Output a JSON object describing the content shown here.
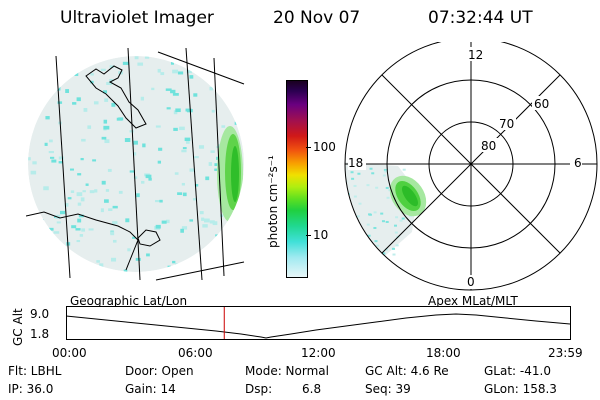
{
  "header": {
    "title": "Ultraviolet Imager",
    "date": "20 Nov 07",
    "time": "07:32:44 UT"
  },
  "colorbar": {
    "label": "photon cm⁻²s⁻¹",
    "ticks": [
      "100",
      "10"
    ]
  },
  "polar": {
    "lat_labels": [
      "80",
      "70",
      "60"
    ],
    "mlt_labels": [
      "12",
      "18",
      "6",
      "0"
    ]
  },
  "panel_labels": {
    "left": "Geographic Lat/Lon",
    "right": "Apex  MLat/MLT"
  },
  "altitude_plot": {
    "ylabel": "GC Alt",
    "y_ticks": [
      "9.0",
      "1.8"
    ],
    "x_ticks": [
      "00:00",
      "06:00",
      "12:00",
      "18:00",
      "23:59"
    ],
    "current_time_fraction": 0.314,
    "marker_color": "#cc0000"
  },
  "info": {
    "flt": "Flt: LBHL",
    "ip": "IP: 36.0",
    "door": "Door: Open",
    "gain": "Gain: 14",
    "mode": "Mode: Normal",
    "dsp_label": "Dsp:",
    "dsp_value": "6.8",
    "gcalt": "GC Alt: 4.6 Re",
    "seq": "Seq: 39",
    "glat": "GLat: -41.0",
    "glon": "GLon: 158.3"
  }
}
